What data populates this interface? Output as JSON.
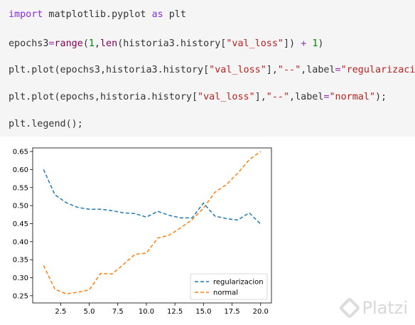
{
  "code_lines": [
    [
      {
        "t": "import",
        "c": "kw"
      },
      {
        "t": " matplotlib.pyplot ",
        "c": "plain"
      },
      {
        "t": "as",
        "c": "kw"
      },
      {
        "t": " plt",
        "c": "plain"
      }
    ],
    [
      {
        "t": "epochs3",
        "c": "plain"
      },
      {
        "t": "=",
        "c": "op"
      },
      {
        "t": "range",
        "c": "bi"
      },
      {
        "t": "(",
        "c": "plain"
      },
      {
        "t": "1",
        "c": "num"
      },
      {
        "t": ",",
        "c": "plain"
      },
      {
        "t": "len",
        "c": "bi"
      },
      {
        "t": "(historia3.history[",
        "c": "plain"
      },
      {
        "t": "\"val_loss\"",
        "c": "str"
      },
      {
        "t": "]) ",
        "c": "plain"
      },
      {
        "t": "+",
        "c": "op"
      },
      {
        "t": " ",
        "c": "plain"
      },
      {
        "t": "1",
        "c": "num"
      },
      {
        "t": ")",
        "c": "plain"
      }
    ],
    [
      {
        "t": "plt.plot(epochs3,historia3.history[",
        "c": "plain"
      },
      {
        "t": "\"val_loss\"",
        "c": "str"
      },
      {
        "t": "],",
        "c": "plain"
      },
      {
        "t": "\"--\"",
        "c": "str"
      },
      {
        "t": ",label",
        "c": "plain"
      },
      {
        "t": "=",
        "c": "op"
      },
      {
        "t": "\"regularizacion\"",
        "c": "str"
      }
    ],
    [
      {
        "t": "plt.plot(epochs,historia.history[",
        "c": "plain"
      },
      {
        "t": "\"val_loss\"",
        "c": "str"
      },
      {
        "t": "],",
        "c": "plain"
      },
      {
        "t": "\"--\"",
        "c": "str"
      },
      {
        "t": ",label",
        "c": "plain"
      },
      {
        "t": "=",
        "c": "op"
      },
      {
        "t": "\"normal\"",
        "c": "str"
      },
      {
        "t": ");",
        "c": "plain"
      }
    ],
    [
      {
        "t": "plt.legend();",
        "c": "plain"
      }
    ]
  ],
  "chart_data": {
    "type": "line",
    "xlim": [
      0.05,
      20.95
    ],
    "ylim": [
      0.23,
      0.66
    ],
    "x_ticks": [
      2.5,
      5.0,
      7.5,
      10.0,
      12.5,
      15.0,
      17.5,
      20.0
    ],
    "x_tick_labels": [
      "2.5",
      "5.0",
      "7.5",
      "10.0",
      "12.5",
      "15.0",
      "17.5",
      "20.0"
    ],
    "y_ticks": [
      0.25,
      0.3,
      0.35,
      0.4,
      0.45,
      0.5,
      0.55,
      0.6,
      0.65
    ],
    "y_tick_labels": [
      "0.25",
      "0.30",
      "0.35",
      "0.40",
      "0.45",
      "0.50",
      "0.55",
      "0.60",
      "0.65"
    ],
    "grid": false,
    "legend_position": "lower-right",
    "x": [
      1,
      2,
      3,
      4,
      5,
      6,
      7,
      8,
      9,
      10,
      11,
      12,
      13,
      14,
      15,
      16,
      17,
      18,
      19,
      20
    ],
    "series": [
      {
        "name": "regularizacion",
        "color": "#1f77b4",
        "values": [
          0.6,
          0.53,
          0.508,
          0.495,
          0.49,
          0.49,
          0.486,
          0.48,
          0.478,
          0.468,
          0.484,
          0.473,
          0.466,
          0.466,
          0.507,
          0.471,
          0.464,
          0.46,
          0.48,
          0.449
        ]
      },
      {
        "name": "normal",
        "color": "#ff7f0e",
        "values": [
          0.334,
          0.268,
          0.255,
          0.26,
          0.266,
          0.312,
          0.31,
          0.337,
          0.365,
          0.368,
          0.41,
          0.418,
          0.438,
          0.461,
          0.493,
          0.537,
          0.558,
          0.59,
          0.627,
          0.65
        ]
      }
    ]
  },
  "watermark": {
    "text": "Platzi"
  }
}
